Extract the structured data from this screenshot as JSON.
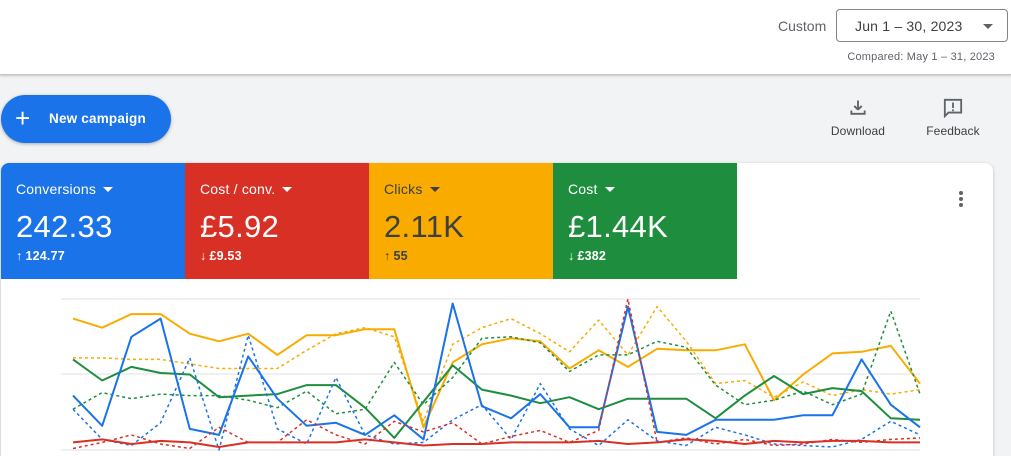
{
  "header": {
    "date_mode_label": "Custom",
    "date_range": "Jun 1 – 30, 2023",
    "compared": "Compared: May 1 – 31, 2023"
  },
  "actions": {
    "new_campaign": "New campaign",
    "download": "Download",
    "feedback": "Feedback"
  },
  "metrics": [
    {
      "name": "Conversions",
      "value": "242.33",
      "delta_arrow": "↑",
      "delta": "124.77",
      "color": "#1a73e8"
    },
    {
      "name": "Cost / conv.",
      "value": "£5.92",
      "delta_arrow": "↓",
      "delta": "£9.53",
      "color": "#d93025"
    },
    {
      "name": "Clicks",
      "value": "2.11K",
      "delta_arrow": "↑",
      "delta": "55",
      "color": "#f9ab00"
    },
    {
      "name": "Cost",
      "value": "£1.44K",
      "delta_arrow": "↓",
      "delta": "£382",
      "color": "#1e8e3e"
    }
  ],
  "chart_data": {
    "type": "line",
    "grid": true,
    "series": [
      {
        "metric": "Clicks",
        "period": "current",
        "color": "#f9ab00",
        "style": "solid",
        "values": [
          0.87,
          0.81,
          0.9,
          0.9,
          0.77,
          0.72,
          0.77,
          0.63,
          0.76,
          0.76,
          0.8,
          0.8,
          0.15,
          0.58,
          0.7,
          0.74,
          0.72,
          0.54,
          0.66,
          0.55,
          0.67,
          0.66,
          0.66,
          0.7,
          0.33,
          0.5,
          0.64,
          0.65,
          0.69,
          0.44
        ]
      },
      {
        "metric": "Clicks",
        "period": "previous",
        "color": "#f9ab00",
        "style": "dashed",
        "values": [
          0.61,
          0.61,
          0.6,
          0.6,
          0.57,
          0.54,
          0.54,
          0.54,
          0.66,
          0.77,
          0.81,
          0.75,
          0.19,
          0.7,
          0.81,
          0.87,
          0.77,
          0.65,
          0.86,
          0.63,
          0.95,
          0.72,
          0.44,
          0.46,
          0.35,
          0.45,
          0.36,
          0.4,
          0.37,
          0.4
        ]
      },
      {
        "metric": "Cost",
        "period": "current",
        "color": "#1e8e3e",
        "style": "solid",
        "values": [
          0.6,
          0.46,
          0.55,
          0.51,
          0.5,
          0.35,
          0.36,
          0.37,
          0.43,
          0.43,
          0.28,
          0.08,
          0.32,
          0.56,
          0.4,
          0.36,
          0.31,
          0.35,
          0.27,
          0.34,
          0.34,
          0.34,
          0.21,
          0.36,
          0.49,
          0.37,
          0.41,
          0.39,
          0.21,
          0.2
        ]
      },
      {
        "metric": "Cost",
        "period": "previous",
        "color": "#1e8e3e",
        "style": "dashed",
        "values": [
          0.27,
          0.38,
          0.34,
          0.37,
          0.36,
          0.36,
          0.33,
          0.28,
          0.39,
          0.24,
          0.27,
          0.58,
          0.3,
          0.48,
          0.74,
          0.75,
          0.71,
          0.52,
          0.63,
          0.63,
          0.72,
          0.68,
          0.43,
          0.3,
          0.33,
          0.39,
          0.3,
          0.37,
          0.92,
          0.37
        ]
      },
      {
        "metric": "Conversions",
        "period": "current",
        "color": "#1a73e8",
        "style": "solid",
        "values": [
          0.36,
          0.16,
          0.75,
          0.87,
          0.14,
          0.1,
          0.62,
          0.34,
          0.16,
          0.18,
          0.1,
          0.23,
          0.07,
          0.97,
          0.29,
          0.21,
          0.37,
          0.15,
          0.15,
          0.95,
          0.12,
          0.1,
          0.2,
          0.2,
          0.2,
          0.23,
          0.23,
          0.6,
          0.3,
          0.15
        ]
      },
      {
        "metric": "Conversions",
        "period": "previous",
        "color": "#1a73e8",
        "style": "dashed",
        "values": [
          0.27,
          0.07,
          0.03,
          0.18,
          0.61,
          0.0,
          0.76,
          0.14,
          0.04,
          0.48,
          0.1,
          0.04,
          0.05,
          0.2,
          0.3,
          0.07,
          0.44,
          0.14,
          0.03,
          0.2,
          0.06,
          0.03,
          0.15,
          0.1,
          0.04,
          0.03,
          0.02,
          0.07,
          0.19,
          0.1
        ]
      },
      {
        "metric": "Cost / conv.",
        "period": "current",
        "color": "#d93025",
        "style": "solid",
        "values": [
          0.05,
          0.07,
          0.04,
          0.06,
          0.05,
          0.02,
          0.05,
          0.05,
          0.05,
          0.05,
          0.07,
          0.05,
          0.03,
          0.04,
          0.04,
          0.05,
          0.05,
          0.05,
          0.06,
          0.04,
          0.05,
          0.07,
          0.06,
          0.04,
          0.06,
          0.05,
          0.06,
          0.06,
          0.05,
          0.05
        ]
      },
      {
        "metric": "Cost / conv.",
        "period": "previous",
        "color": "#d93025",
        "style": "dashed",
        "values": [
          0.01,
          0.05,
          0.1,
          0.04,
          0.01,
          0.15,
          0.05,
          0.05,
          0.2,
          0.1,
          0.04,
          0.19,
          0.12,
          0.18,
          0.04,
          0.09,
          0.13,
          0.05,
          0.13,
          1.0,
          0.05,
          0.08,
          0.04,
          0.07,
          0.03,
          0.04,
          0.07,
          0.05,
          0.07,
          0.08
        ]
      }
    ]
  }
}
